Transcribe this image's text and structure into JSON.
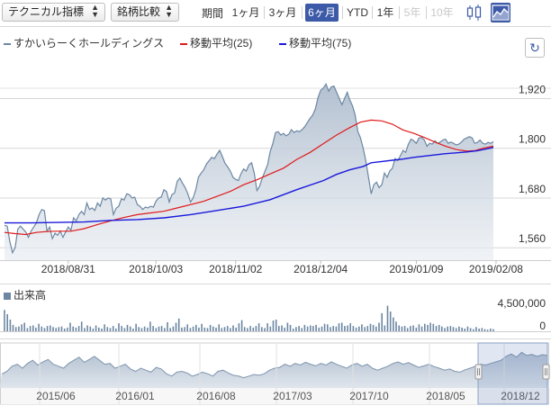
{
  "toolbar": {
    "technical_label": "テクニカル指標",
    "compare_label": "銘柄比較",
    "period_label": "期間",
    "periods": [
      {
        "label": "1ヶ月",
        "state": "normal"
      },
      {
        "label": "3ヶ月",
        "state": "normal"
      },
      {
        "label": "6ヶ月",
        "state": "active"
      },
      {
        "label": "YTD",
        "state": "normal"
      },
      {
        "label": "1年",
        "state": "normal"
      },
      {
        "label": "5年",
        "state": "disabled"
      },
      {
        "label": "10年",
        "state": "disabled"
      }
    ],
    "chart_types": [
      "candlestick-icon",
      "area-chart-icon"
    ],
    "active_type": "area-chart-icon"
  },
  "colors": {
    "price_line": "#6c87a3",
    "area_fill": "#c7d1de",
    "ma25": "#e01a1a",
    "ma75": "#1a1adb",
    "active": "#3d5aa8",
    "grid": "#d7d7d7"
  },
  "chart_data": [
    {
      "type": "area",
      "series": [
        {
          "name": "すかいらーくホールディングス",
          "style": "area"
        },
        {
          "name": "移動平均(25)",
          "style": "line"
        },
        {
          "name": "移動平均(75)",
          "style": "line"
        }
      ],
      "ylim": [
        1530,
        2010
      ],
      "yticks": [
        1560,
        1680,
        1800,
        1920
      ],
      "ytick_labels": [
        "1,560",
        "1,680",
        "1,800",
        "1,920"
      ],
      "xticks": [
        "2018/08/31",
        "2018/10/03",
        "2018/11/02",
        "2018/12/04",
        "2019/01/09",
        "2019/02/08"
      ],
      "xlim_days": [
        0,
        184
      ],
      "xtick_days": [
        24,
        57,
        87,
        119,
        155,
        185
      ],
      "price": [
        [
          0,
          1614
        ],
        [
          1,
          1612
        ],
        [
          2,
          1575
        ],
        [
          3,
          1548
        ],
        [
          4,
          1560
        ],
        [
          5,
          1605
        ],
        [
          6,
          1612
        ],
        [
          8,
          1598
        ],
        [
          9,
          1585
        ],
        [
          10,
          1600
        ],
        [
          12,
          1620
        ],
        [
          13,
          1640
        ],
        [
          14,
          1652
        ],
        [
          15,
          1650
        ],
        [
          16,
          1600
        ],
        [
          17,
          1610
        ],
        [
          18,
          1582
        ],
        [
          19,
          1595
        ],
        [
          20,
          1590
        ],
        [
          21,
          1600
        ],
        [
          22,
          1585
        ],
        [
          23,
          1598
        ],
        [
          24,
          1610
        ],
        [
          25,
          1602
        ],
        [
          26,
          1632
        ],
        [
          27,
          1625
        ],
        [
          28,
          1640
        ],
        [
          29,
          1648
        ],
        [
          30,
          1640
        ],
        [
          31,
          1668
        ],
        [
          32,
          1652
        ],
        [
          33,
          1656
        ],
        [
          34,
          1650
        ],
        [
          35,
          1668
        ],
        [
          36,
          1660
        ],
        [
          37,
          1680
        ],
        [
          38,
          1675
        ],
        [
          39,
          1680
        ],
        [
          40,
          1678
        ],
        [
          41,
          1640
        ],
        [
          42,
          1655
        ],
        [
          43,
          1660
        ],
        [
          44,
          1678
        ],
        [
          45,
          1675
        ],
        [
          46,
          1690
        ],
        [
          47,
          1688
        ],
        [
          48,
          1680
        ],
        [
          49,
          1682
        ],
        [
          50,
          1664
        ],
        [
          51,
          1660
        ],
        [
          52,
          1652
        ],
        [
          53,
          1658
        ],
        [
          54,
          1656
        ],
        [
          55,
          1660
        ],
        [
          56,
          1658
        ],
        [
          57,
          1672
        ],
        [
          58,
          1680
        ],
        [
          59,
          1682
        ],
        [
          60,
          1700
        ],
        [
          61,
          1695
        ],
        [
          62,
          1670
        ],
        [
          63,
          1688
        ],
        [
          64,
          1692
        ],
        [
          65,
          1720
        ],
        [
          66,
          1728
        ],
        [
          67,
          1716
        ],
        [
          68,
          1705
        ],
        [
          69,
          1690
        ],
        [
          70,
          1670
        ],
        [
          71,
          1680
        ],
        [
          72,
          1700
        ],
        [
          73,
          1730
        ],
        [
          74,
          1740
        ],
        [
          75,
          1748
        ],
        [
          76,
          1762
        ],
        [
          77,
          1770
        ],
        [
          78,
          1778
        ],
        [
          79,
          1775
        ],
        [
          80,
          1786
        ],
        [
          81,
          1795
        ],
        [
          82,
          1780
        ],
        [
          83,
          1764
        ],
        [
          84,
          1755
        ],
        [
          85,
          1745
        ],
        [
          86,
          1730
        ],
        [
          87,
          1725
        ],
        [
          88,
          1722
        ],
        [
          89,
          1738
        ],
        [
          90,
          1750
        ],
        [
          91,
          1745
        ],
        [
          92,
          1760
        ],
        [
          93,
          1765
        ],
        [
          94,
          1740
        ],
        [
          95,
          1698
        ],
        [
          96,
          1708
        ],
        [
          97,
          1728
        ],
        [
          98,
          1744
        ],
        [
          99,
          1760
        ],
        [
          100,
          1792
        ],
        [
          101,
          1812
        ],
        [
          102,
          1838
        ],
        [
          103,
          1840
        ],
        [
          104,
          1832
        ],
        [
          105,
          1836
        ],
        [
          106,
          1830
        ],
        [
          107,
          1834
        ],
        [
          108,
          1845
        ],
        [
          109,
          1838
        ],
        [
          110,
          1842
        ],
        [
          111,
          1840
        ],
        [
          112,
          1845
        ],
        [
          113,
          1852
        ],
        [
          114,
          1862
        ],
        [
          115,
          1872
        ],
        [
          116,
          1880
        ],
        [
          117,
          1895
        ],
        [
          118,
          1922
        ],
        [
          119,
          1940
        ],
        [
          120,
          1945
        ],
        [
          121,
          1955
        ],
        [
          122,
          1938
        ],
        [
          123,
          1948
        ],
        [
          124,
          1950
        ],
        [
          125,
          1935
        ],
        [
          126,
          1920
        ],
        [
          127,
          1905
        ],
        [
          128,
          1920
        ],
        [
          129,
          1935
        ],
        [
          130,
          1916
        ],
        [
          131,
          1902
        ],
        [
          132,
          1880
        ],
        [
          133,
          1840
        ],
        [
          134,
          1825
        ],
        [
          135,
          1800
        ],
        [
          136,
          1770
        ],
        [
          137,
          1730
        ],
        [
          138,
          1690
        ],
        [
          139,
          1712
        ],
        [
          140,
          1718
        ],
        [
          141,
          1705
        ],
        [
          142,
          1712
        ],
        [
          143,
          1740
        ],
        [
          144,
          1730
        ],
        [
          145,
          1745
        ],
        [
          146,
          1752
        ],
        [
          147,
          1775
        ],
        [
          148,
          1770
        ],
        [
          149,
          1782
        ],
        [
          150,
          1795
        ],
        [
          151,
          1790
        ],
        [
          152,
          1810
        ],
        [
          153,
          1822
        ],
        [
          154,
          1818
        ],
        [
          155,
          1812
        ],
        [
          156,
          1825
        ],
        [
          157,
          1826
        ],
        [
          158,
          1820
        ],
        [
          159,
          1805
        ],
        [
          160,
          1812
        ],
        [
          161,
          1810
        ],
        [
          162,
          1818
        ],
        [
          163,
          1812
        ],
        [
          164,
          1815
        ],
        [
          165,
          1820
        ],
        [
          166,
          1822
        ],
        [
          167,
          1812
        ],
        [
          168,
          1815
        ],
        [
          169,
          1812
        ],
        [
          170,
          1808
        ],
        [
          171,
          1810
        ],
        [
          172,
          1815
        ],
        [
          173,
          1822
        ],
        [
          174,
          1825
        ],
        [
          175,
          1828
        ],
        [
          176,
          1825
        ],
        [
          177,
          1812
        ],
        [
          178,
          1814
        ],
        [
          179,
          1820
        ],
        [
          180,
          1812
        ],
        [
          181,
          1810
        ],
        [
          182,
          1814
        ],
        [
          183,
          1812
        ],
        [
          184,
          1816
        ]
      ],
      "ma25": [
        [
          0,
          1597
        ],
        [
          4,
          1594
        ],
        [
          8,
          1592
        ],
        [
          12,
          1597
        ],
        [
          16,
          1599
        ],
        [
          20,
          1600
        ],
        [
          25,
          1600
        ],
        [
          30,
          1606
        ],
        [
          35,
          1616
        ],
        [
          40,
          1625
        ],
        [
          45,
          1633
        ],
        [
          50,
          1640
        ],
        [
          55,
          1644
        ],
        [
          60,
          1648
        ],
        [
          65,
          1656
        ],
        [
          70,
          1664
        ],
        [
          75,
          1672
        ],
        [
          80,
          1684
        ],
        [
          85,
          1696
        ],
        [
          90,
          1712
        ],
        [
          95,
          1724
        ],
        [
          100,
          1738
        ],
        [
          105,
          1752
        ],
        [
          110,
          1773
        ],
        [
          115,
          1790
        ],
        [
          120,
          1811
        ],
        [
          125,
          1832
        ],
        [
          130,
          1850
        ],
        [
          134,
          1863
        ],
        [
          138,
          1868
        ],
        [
          142,
          1866
        ],
        [
          146,
          1858
        ],
        [
          150,
          1844
        ],
        [
          154,
          1836
        ],
        [
          158,
          1826
        ],
        [
          162,
          1815
        ],
        [
          166,
          1805
        ],
        [
          170,
          1797
        ],
        [
          174,
          1793
        ],
        [
          177,
          1794
        ],
        [
          180,
          1800
        ],
        [
          184,
          1805
        ]
      ],
      "ma75": [
        [
          0,
          1620
        ],
        [
          10,
          1620
        ],
        [
          20,
          1621
        ],
        [
          30,
          1622
        ],
        [
          40,
          1626
        ],
        [
          50,
          1628
        ],
        [
          60,
          1632
        ],
        [
          70,
          1640
        ],
        [
          80,
          1650
        ],
        [
          90,
          1660
        ],
        [
          100,
          1676
        ],
        [
          110,
          1700
        ],
        [
          120,
          1722
        ],
        [
          125,
          1737
        ],
        [
          130,
          1748
        ],
        [
          135,
          1756
        ],
        [
          138,
          1765
        ],
        [
          142,
          1768
        ],
        [
          146,
          1771
        ],
        [
          150,
          1774
        ],
        [
          154,
          1778
        ],
        [
          158,
          1781
        ],
        [
          162,
          1784
        ],
        [
          166,
          1787
        ],
        [
          170,
          1789
        ],
        [
          174,
          1791
        ],
        [
          178,
          1794
        ],
        [
          182,
          1799
        ],
        [
          184,
          1802
        ]
      ]
    },
    {
      "type": "bar",
      "series": [
        {
          "name": "出来高"
        }
      ],
      "ylim": [
        0,
        5400000
      ],
      "yticks": [
        0,
        4500000
      ],
      "ytick_labels": [
        "0",
        "4,500,000"
      ],
      "volume": [
        4,
        3.2,
        2.2,
        1.2,
        0.8,
        0.9,
        1.3,
        1.6,
        0.6,
        1.0,
        1.1,
        0.7,
        1.4,
        0.9,
        0.6,
        1.0,
        1.1,
        0.8,
        0.6,
        0.8,
        0.9,
        0.5,
        0.7,
        1.6,
        0.9,
        0.7,
        1.0,
        1.8,
        0.6,
        1.1,
        0.9,
        0.5,
        1.1,
        0.7,
        0.5,
        1.3,
        0.8,
        0.6,
        1.0,
        0.5,
        1.5,
        1.0,
        0.6,
        1.2,
        0.9,
        0.5,
        1.4,
        0.8,
        0.6,
        0.9,
        0.7,
        1.8,
        1.0,
        0.6,
        0.9,
        1.0,
        0.6,
        1.7,
        0.6,
        0.9,
        1.6,
        2.4,
        0.7,
        0.8,
        1.3,
        0.6,
        0.9,
        1.2,
        0.7,
        1.4,
        0.7,
        0.6,
        1.2,
        0.9,
        0.7,
        1.3,
        0.6,
        0.8,
        1.0,
        0.6,
        1.1,
        0.7,
        1.5,
        2.1,
        0.8,
        0.6,
        1.0,
        0.7,
        1.0,
        1.5,
        0.8,
        0.6,
        1.5,
        0.9,
        2.0,
        2.2,
        1.0,
        1.1,
        0.7,
        1.6,
        1.2,
        0.5,
        0.8,
        1.0,
        0.6,
        1.2,
        0.9,
        1.1,
        1.0,
        1.2,
        0.7,
        0.9,
        1.4,
        1.3,
        0.8,
        1.0,
        0.9,
        1.5,
        1.6,
        1.0,
        1.1,
        1.5,
        1.0,
        0.7,
        0.9,
        1.3,
        0.8,
        1.0,
        1.4,
        1.2,
        0.9,
        1.6,
        3.4,
        1.1,
        4.8,
        3.7,
        2.6,
        1.8,
        1.1,
        0.9,
        1.0,
        0.6,
        1.0,
        1.1,
        0.7,
        1.3,
        0.9,
        1.4,
        1.2,
        1.6,
        1.4,
        1.0,
        1.2,
        0.9,
        0.6,
        0.9,
        1.0,
        0.8,
        0.6,
        0.9,
        0.7,
        0.5,
        0.9,
        0.6,
        0.4,
        0.8,
        0.5,
        0.6,
        0.4,
        0.3,
        0.5,
        0.4
      ]
    },
    {
      "type": "area",
      "series": [
        {
          "name": "navigator"
        }
      ],
      "xticks": [
        "2015/06",
        "2016/01",
        "2016/08",
        "2017/03",
        "2017/10",
        "2018/05",
        "2018/12"
      ],
      "levels": [
        0.35,
        0.42,
        0.55,
        0.6,
        0.5,
        0.62,
        0.7,
        0.58,
        0.66,
        0.72,
        0.6,
        0.55,
        0.5,
        0.62,
        0.7,
        0.78,
        0.65,
        0.72,
        0.8,
        0.7,
        0.6,
        0.62,
        0.5,
        0.55,
        0.6,
        0.48,
        0.42,
        0.5,
        0.45,
        0.4,
        0.52,
        0.48,
        0.36,
        0.3,
        0.4,
        0.42,
        0.38,
        0.3,
        0.34,
        0.4,
        0.36,
        0.3,
        0.42,
        0.45,
        0.38,
        0.32,
        0.3,
        0.26,
        0.3,
        0.34,
        0.32,
        0.36,
        0.45,
        0.5,
        0.52,
        0.6,
        0.55,
        0.62,
        0.58,
        0.65,
        0.6,
        0.56,
        0.62,
        0.58,
        0.66,
        0.6,
        0.55,
        0.5,
        0.58,
        0.62,
        0.55,
        0.6,
        0.5,
        0.45,
        0.5,
        0.55,
        0.62,
        0.66,
        0.6,
        0.64,
        0.58,
        0.52,
        0.56,
        0.6,
        0.54,
        0.5,
        0.45,
        0.48,
        0.42,
        0.4,
        0.46,
        0.5,
        0.55,
        0.6,
        0.58,
        0.62,
        0.66,
        0.7,
        0.8,
        0.86,
        0.78,
        0.9,
        0.82,
        0.85,
        0.8,
        0.84,
        0.82
      ]
    }
  ]
}
